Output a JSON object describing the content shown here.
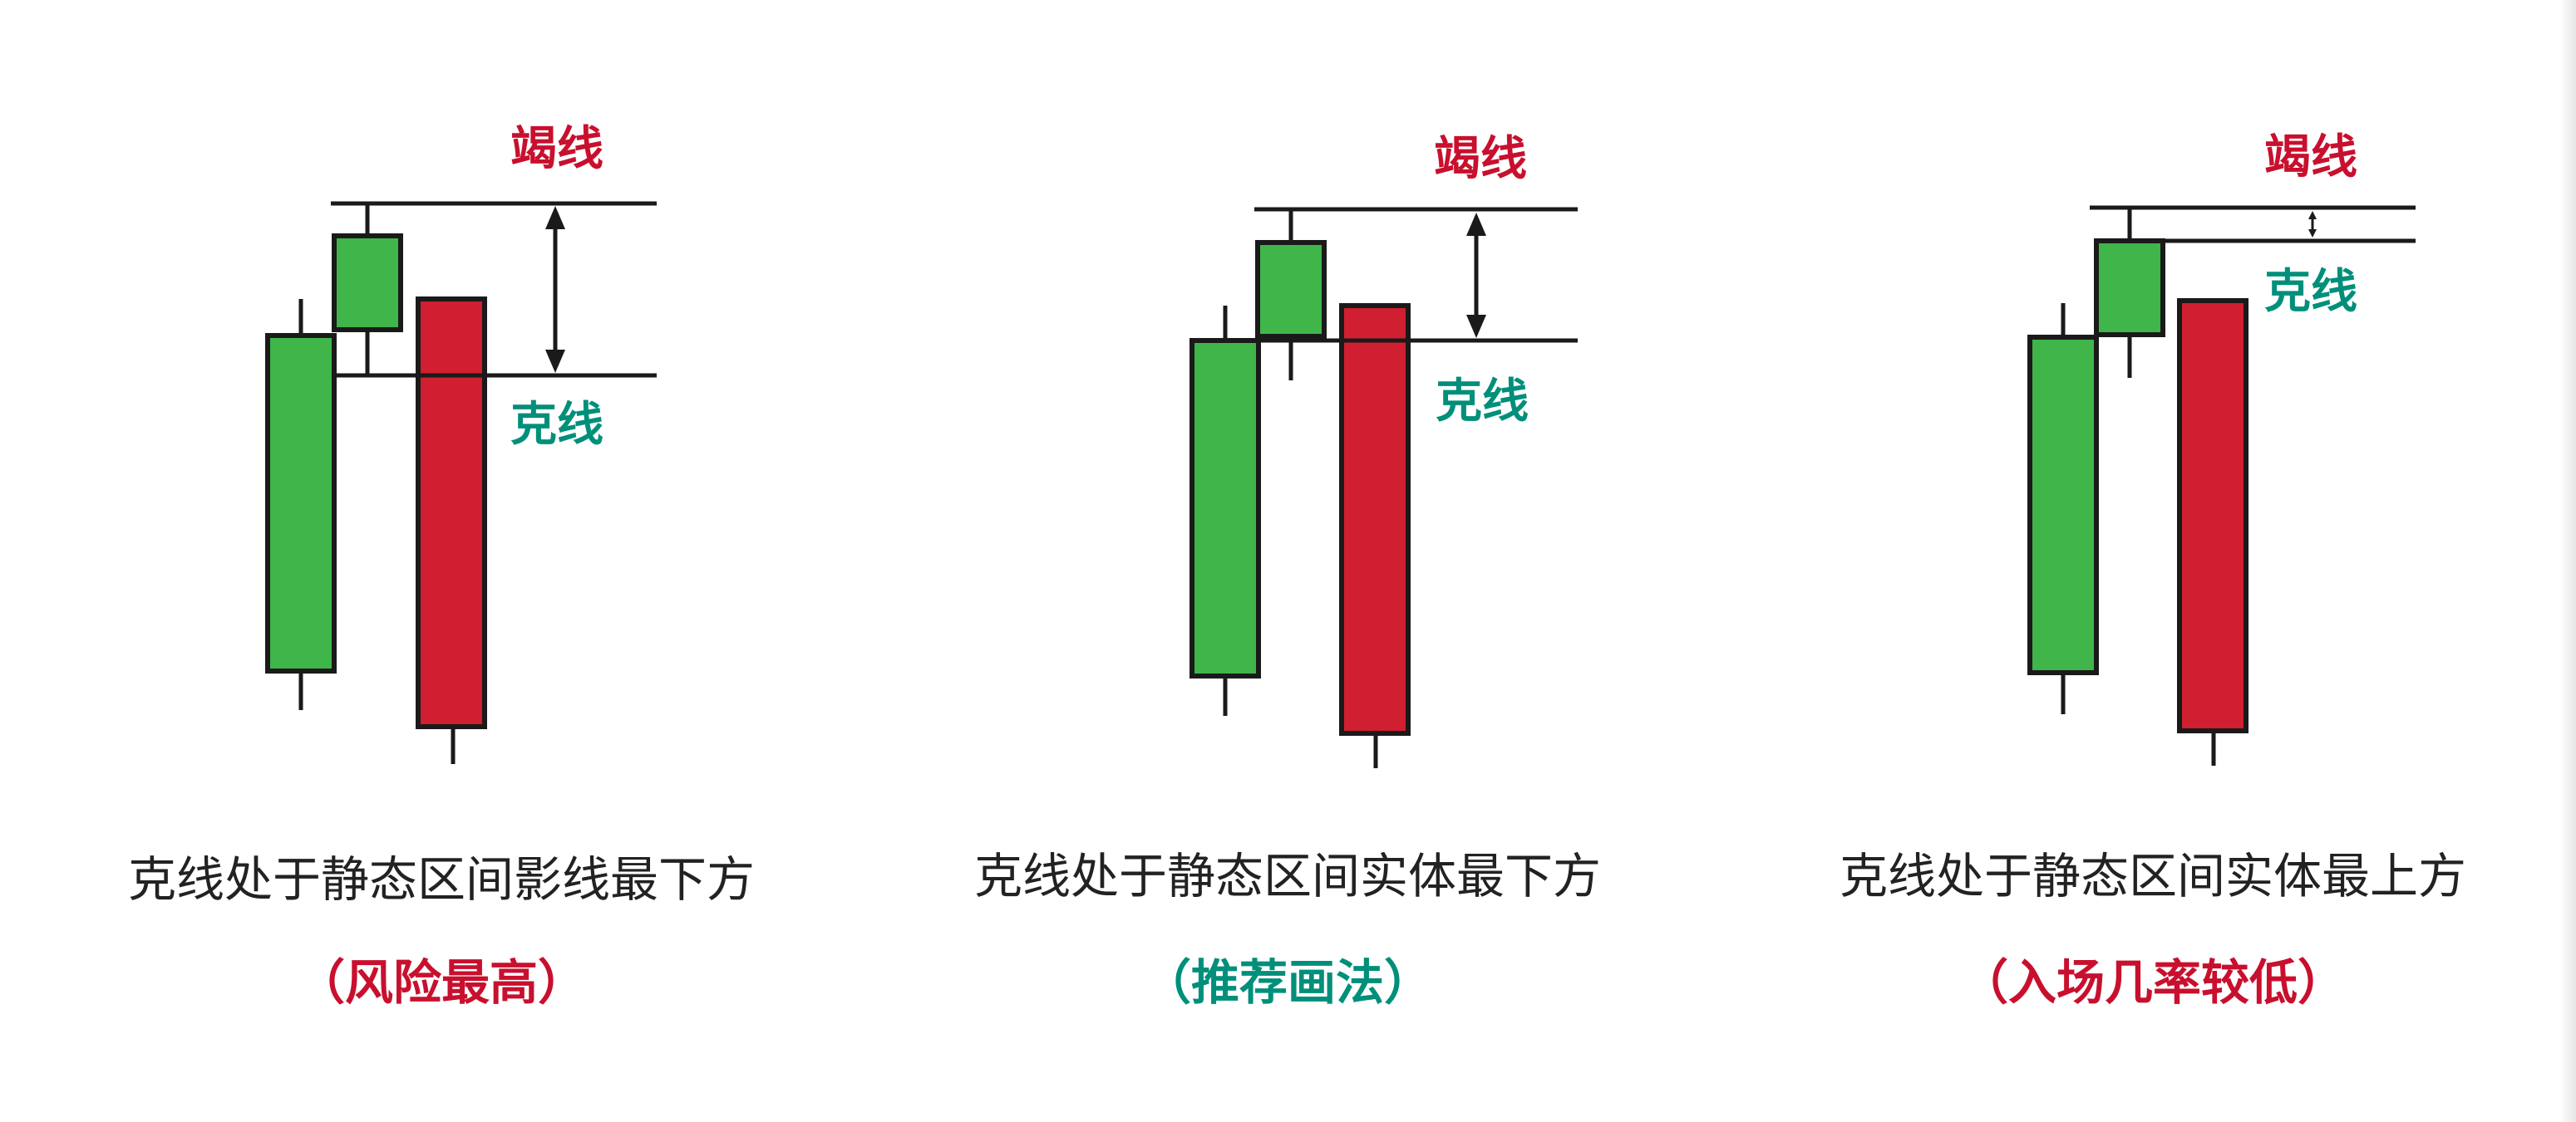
{
  "colors": {
    "bull": "#3fb54a",
    "bear": "#d01f30",
    "line": "#1a1a1a",
    "label_red": "#c8102e",
    "label_teal": "#008f7a",
    "caption": "#222222"
  },
  "panels": [
    {
      "exhaust_label": "竭线",
      "gram_label": "克线",
      "caption": "克线处于静态区间影线最下方",
      "note": "（风险最高）",
      "note_color": "label_red"
    },
    {
      "exhaust_label": "竭线",
      "gram_label": "克线",
      "caption": "克线处于静态区间实体最下方",
      "note": "（推荐画法）",
      "note_color": "label_teal"
    },
    {
      "exhaust_label": "竭线",
      "gram_label": "克线",
      "caption": "克线处于静态区间实体最上方",
      "note": "（入场几率较低）",
      "note_color": "label_red"
    }
  ]
}
